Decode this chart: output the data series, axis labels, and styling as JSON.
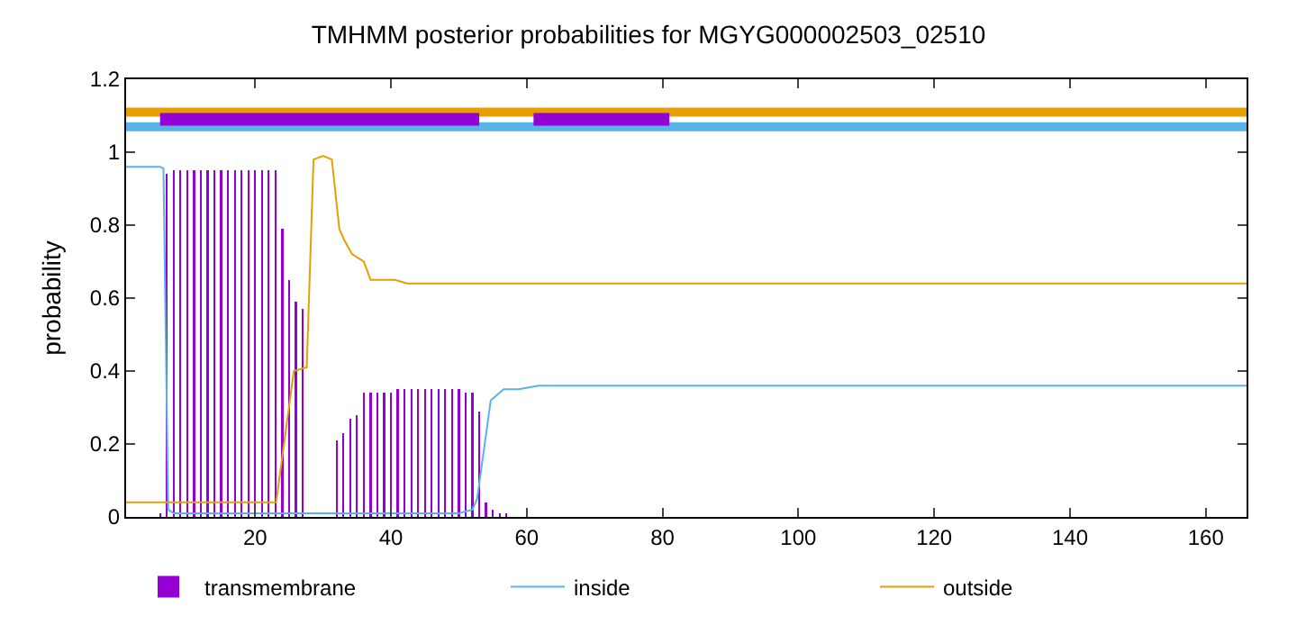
{
  "chart_data": {
    "type": "line",
    "title": "TMHMM posterior probabilities for MGYG000002503_02510",
    "ylabel": "probability",
    "xlim": [
      1,
      166
    ],
    "ylim": [
      0,
      1.2
    ],
    "xticks": [
      20,
      40,
      60,
      80,
      100,
      120,
      140,
      160
    ],
    "yticks": [
      0,
      0.2,
      0.4,
      0.6,
      0.8,
      1,
      1.2
    ],
    "grid": false,
    "legend": "bottom",
    "marker": "none",
    "line_style": "solid",
    "series": [
      {
        "name": "transmembrane",
        "type": "bar",
        "color": "#9400d3",
        "x": [
          6,
          7,
          8,
          9,
          10,
          11,
          12,
          13,
          14,
          15,
          16,
          17,
          18,
          19,
          20,
          21,
          22,
          23,
          24,
          25,
          26,
          27,
          32,
          33,
          34,
          35,
          36,
          37,
          38,
          39,
          40,
          41,
          42,
          43,
          44,
          45,
          46,
          47,
          48,
          49,
          50,
          51,
          52,
          53,
          54,
          55,
          56,
          57
        ],
        "values": [
          0.01,
          0.94,
          0.95,
          0.95,
          0.95,
          0.95,
          0.95,
          0.95,
          0.95,
          0.95,
          0.95,
          0.95,
          0.95,
          0.95,
          0.95,
          0.95,
          0.95,
          0.95,
          0.79,
          0.65,
          0.59,
          0.57,
          0.21,
          0.23,
          0.27,
          0.28,
          0.34,
          0.34,
          0.34,
          0.34,
          0.34,
          0.35,
          0.35,
          0.35,
          0.35,
          0.35,
          0.35,
          0.35,
          0.35,
          0.35,
          0.35,
          0.34,
          0.34,
          0.29,
          0.04,
          0.02,
          0.01,
          0.01
        ]
      },
      {
        "name": "inside",
        "color": "#56b4e9",
        "x": [
          1,
          6,
          6.5,
          7.2,
          8,
          50,
          52,
          52.7,
          54.7,
          56.6,
          58.8,
          61.8,
          166
        ],
        "values": [
          0.96,
          0.96,
          0.955,
          0.02,
          0.01,
          0.01,
          0.02,
          0.05,
          0.32,
          0.35,
          0.35,
          0.36,
          0.36
        ]
      },
      {
        "name": "outside",
        "color": "#e69f00",
        "x": [
          1,
          23.1,
          25.7,
          27.6,
          28.6,
          30,
          31.3,
          32.4,
          33.1,
          34.3,
          36,
          37,
          40.6,
          42.4,
          166
        ],
        "values": [
          0.04,
          0.04,
          0.4,
          0.41,
          0.98,
          0.99,
          0.98,
          0.79,
          0.76,
          0.72,
          0.7,
          0.65,
          0.65,
          0.64,
          0.64
        ]
      },
      {
        "color": "#e69f00",
        "x": [
          1,
          166
        ],
        "values": [
          1.11,
          1.11
        ]
      },
      {
        "color": "#56b4e9",
        "x": [
          1,
          166
        ],
        "values": [
          1.07,
          1.07
        ]
      },
      {
        "color": "#9400d3",
        "x": [
          6,
          53,
          null,
          61,
          81
        ],
        "values": [
          1.09,
          1.09,
          null,
          1.09,
          1.09
        ]
      }
    ]
  }
}
